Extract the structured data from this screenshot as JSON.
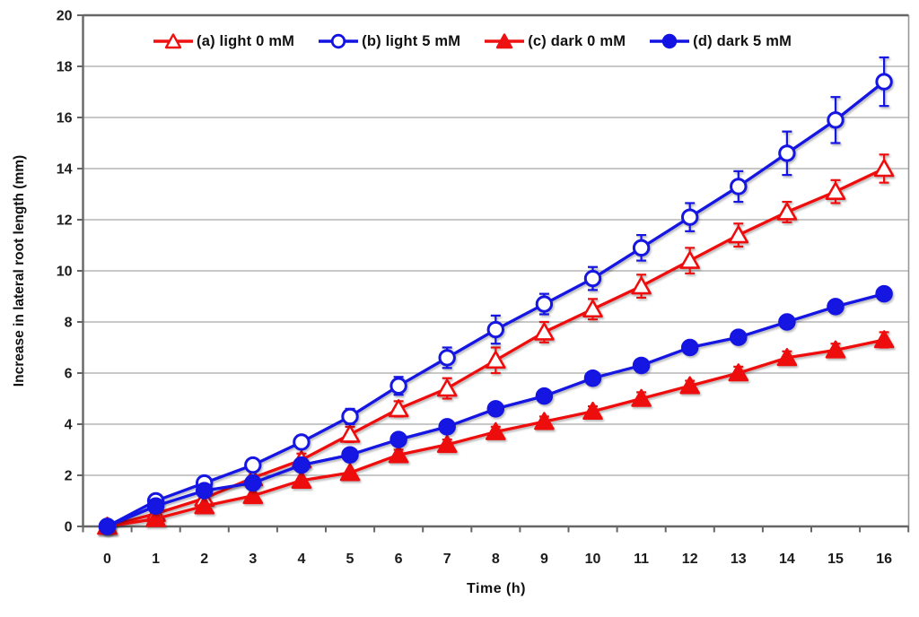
{
  "chart_data": {
    "type": "line",
    "title": "",
    "xlabel": "Time (h)",
    "ylabel": "Increase in lateral root length (mm)",
    "x": [
      0,
      1,
      2,
      3,
      4,
      5,
      6,
      7,
      8,
      9,
      10,
      11,
      12,
      13,
      14,
      15,
      16
    ],
    "xticks": [
      0,
      1,
      2,
      3,
      4,
      5,
      6,
      7,
      8,
      9,
      10,
      11,
      12,
      13,
      14,
      15,
      16
    ],
    "yticks": [
      0,
      2,
      4,
      6,
      8,
      10,
      12,
      14,
      16,
      18,
      20
    ],
    "xlim": [
      -0.5,
      17
    ],
    "ylim": [
      0,
      20
    ],
    "grid": true,
    "legend_position": "top-inside",
    "colors": {
      "red": "#ee1111",
      "blue": "#1212e2",
      "grid": "#a8a8a8",
      "axis": "#666666",
      "tick_text": "#1b1b1b"
    },
    "series": [
      {
        "name": "(a) light 0 mM",
        "color": "#ee1111",
        "marker": "triangle-open",
        "values": [
          0,
          0.5,
          1.1,
          1.9,
          2.6,
          3.6,
          4.6,
          5.4,
          6.5,
          7.6,
          8.5,
          9.4,
          10.4,
          11.4,
          12.3,
          13.1,
          14.0
        ],
        "errors": [
          0,
          0,
          0,
          0,
          0.25,
          0.3,
          0.3,
          0.4,
          0.5,
          0.4,
          0.4,
          0.45,
          0.5,
          0.45,
          0.4,
          0.45,
          0.55
        ]
      },
      {
        "name": "(b) light 5 mM",
        "color": "#1212e2",
        "marker": "circle-open",
        "values": [
          0,
          1.0,
          1.7,
          2.4,
          3.3,
          4.3,
          5.5,
          6.6,
          7.7,
          8.7,
          9.7,
          10.9,
          12.1,
          13.3,
          14.6,
          15.9,
          17.4
        ],
        "errors": [
          0,
          0,
          0,
          0,
          0.25,
          0.3,
          0.35,
          0.4,
          0.55,
          0.4,
          0.45,
          0.5,
          0.55,
          0.6,
          0.85,
          0.9,
          0.95
        ]
      },
      {
        "name": "(c) dark 0 mM",
        "color": "#ee1111",
        "marker": "triangle-filled",
        "values": [
          0,
          0.3,
          0.8,
          1.2,
          1.8,
          2.1,
          2.8,
          3.2,
          3.7,
          4.1,
          4.5,
          5.0,
          5.5,
          6.0,
          6.6,
          6.9,
          7.3
        ],
        "errors": [
          0,
          0,
          0,
          0,
          0,
          0,
          0.2,
          0.2,
          0.2,
          0.2,
          0.2,
          0.25,
          0.2,
          0.25,
          0.25,
          0.25,
          0.3
        ]
      },
      {
        "name": "(d) dark 5 mM",
        "color": "#1212e2",
        "marker": "circle-filled",
        "values": [
          0,
          0.8,
          1.4,
          1.7,
          2.4,
          2.8,
          3.4,
          3.9,
          4.6,
          5.1,
          5.8,
          6.3,
          7.0,
          7.4,
          8.0,
          8.6,
          9.1
        ],
        "errors": [
          0,
          0,
          0,
          0,
          0,
          0,
          0,
          0,
          0,
          0,
          0,
          0,
          0,
          0,
          0,
          0,
          0
        ]
      }
    ]
  }
}
